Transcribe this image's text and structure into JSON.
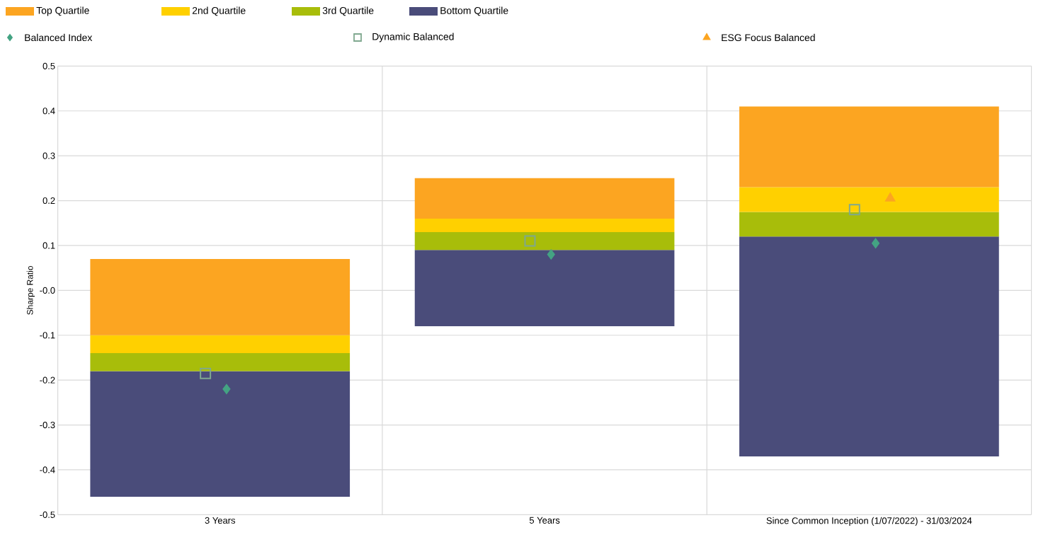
{
  "chart_data": {
    "type": "bar",
    "ylabel": "Sharpe Ratio",
    "categories": [
      "3 Years",
      "5 Years",
      "Since Common Inception (1/07/2022) - 31/03/2024"
    ],
    "series": [
      {
        "name": "Bottom Quartile",
        "color": "#4a4c7a",
        "base": [
          -0.46,
          -0.08,
          -0.37
        ],
        "values": [
          0.28,
          0.17,
          0.49
        ]
      },
      {
        "name": "3rd Quartile",
        "color": "#a8bd0a",
        "base": [
          -0.18,
          0.09,
          0.12
        ],
        "values": [
          0.04,
          0.04,
          0.055
        ]
      },
      {
        "name": "2nd Quartile",
        "color": "#ffd000",
        "base": [
          -0.14,
          0.13,
          0.175
        ],
        "values": [
          0.04,
          0.03,
          0.055
        ]
      },
      {
        "name": "Top Quartile",
        "color": "#fca521",
        "base": [
          -0.1,
          0.16,
          0.23
        ],
        "values": [
          0.17,
          0.09,
          0.18
        ]
      },
      {
        "name": "Balanced Index",
        "type": "scatter",
        "marker": "diamond",
        "color": "#44a383",
        "x": [
          "3 Years",
          "5 Years",
          "Since Common Inception (1/07/2022) - 31/03/2024"
        ],
        "values": [
          -0.22,
          0.08,
          0.105
        ]
      },
      {
        "name": "Dynamic Balanced",
        "type": "scatter",
        "marker": "square",
        "color": "#7fa88f",
        "x": [
          "3 Years",
          "5 Years",
          "Since Common Inception (1/07/2022) - 31/03/2024"
        ],
        "values": [
          -0.185,
          0.11,
          0.18
        ]
      },
      {
        "name": "ESG Focus Balanced",
        "type": "scatter",
        "marker": "triangle",
        "color": "#fca521",
        "x": [
          "3 Years",
          "5 Years",
          "Since Common Inception (1/07/2022) - 31/03/2024"
        ],
        "values": [
          null,
          null,
          0.205
        ]
      }
    ],
    "ylim": [
      -0.5,
      0.5
    ],
    "yticks": [
      -0.5,
      -0.4,
      -0.3,
      -0.2,
      -0.1,
      {
        "value": 0,
        "label": "-0.0"
      },
      0.1,
      0.2,
      0.3,
      0.4,
      0.5
    ],
    "grid": true,
    "legend": "top"
  }
}
